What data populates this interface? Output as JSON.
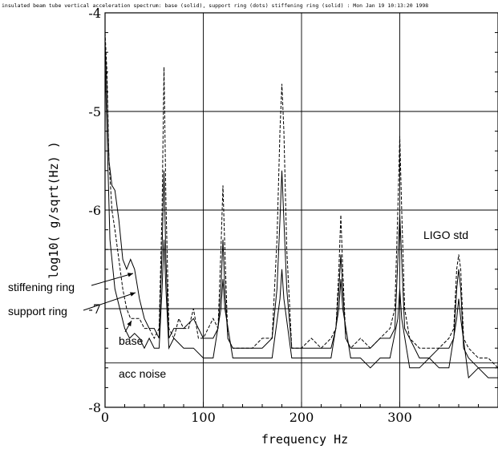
{
  "chart_data": {
    "type": "line",
    "title": "insulated beam tube vertical acceleration spectrum: base (solid), support ring (dots) stiffening ring (solid) : Mon Jan 19 10:13:20 1998",
    "xlabel": "frequency Hz",
    "ylabel": "log10( g/sqrt(Hz) )",
    "xlim": [
      0,
      400
    ],
    "ylim": [
      -8,
      -4
    ],
    "x_ticks": [
      0,
      100,
      200,
      300
    ],
    "x_tick_labels": [
      "0",
      "100",
      "200",
      "300"
    ],
    "y_ticks": [
      -4,
      -5,
      -6,
      -7,
      -8
    ],
    "y_tick_labels": [
      "-4",
      "-5",
      "-6",
      "-7",
      "-8"
    ],
    "hlines": [
      {
        "label": "LIGO std",
        "y": -6.4
      },
      {
        "label": "acc noise",
        "y": -7.55
      }
    ],
    "grid": true,
    "annotations": [
      "stiffening ring",
      "support ring",
      "base",
      "LIGO std",
      "acc noise"
    ],
    "series": [
      {
        "name": "support ring",
        "style": "dashed",
        "x": [
          0,
          2,
          4,
          7,
          10,
          14,
          18,
          22,
          26,
          30,
          35,
          40,
          45,
          50,
          55,
          58,
          60,
          62,
          65,
          70,
          75,
          80,
          85,
          90,
          95,
          100,
          105,
          110,
          115,
          118,
          120,
          122,
          125,
          130,
          140,
          150,
          160,
          165,
          170,
          175,
          178,
          180,
          182,
          185,
          190,
          200,
          210,
          220,
          230,
          235,
          238,
          240,
          242,
          245,
          250,
          260,
          270,
          280,
          290,
          295,
          298,
          300,
          302,
          305,
          310,
          320,
          330,
          340,
          350,
          355,
          358,
          360,
          362,
          365,
          370,
          380,
          390,
          400
        ],
        "y": [
          -4.2,
          -4.6,
          -5.5,
          -6.0,
          -6.2,
          -6.5,
          -6.8,
          -7.0,
          -7.1,
          -7.1,
          -7.1,
          -7.2,
          -7.2,
          -7.3,
          -7.2,
          -6.0,
          -4.55,
          -5.9,
          -7.2,
          -7.3,
          -7.1,
          -7.2,
          -7.2,
          -7.0,
          -7.3,
          -7.3,
          -7.2,
          -7.1,
          -7.2,
          -6.4,
          -5.75,
          -6.4,
          -7.3,
          -7.4,
          -7.4,
          -7.4,
          -7.3,
          -7.3,
          -7.3,
          -6.3,
          -5.2,
          -4.72,
          -5.2,
          -6.4,
          -7.4,
          -7.4,
          -7.3,
          -7.4,
          -7.3,
          -7.2,
          -6.6,
          -6.05,
          -6.6,
          -7.3,
          -7.4,
          -7.3,
          -7.4,
          -7.3,
          -7.2,
          -7.0,
          -6.0,
          -5.25,
          -6.0,
          -7.0,
          -7.3,
          -7.4,
          -7.4,
          -7.4,
          -7.3,
          -7.2,
          -6.6,
          -6.45,
          -6.6,
          -7.3,
          -7.4,
          -7.5,
          -7.5,
          -7.6
        ]
      },
      {
        "name": "stiffening ring",
        "style": "solid",
        "x": [
          0,
          2,
          4,
          7,
          10,
          14,
          18,
          22,
          26,
          30,
          35,
          40,
          45,
          50,
          55,
          58,
          60,
          62,
          65,
          70,
          80,
          90,
          100,
          110,
          115,
          118,
          120,
          122,
          125,
          130,
          140,
          150,
          160,
          170,
          175,
          178,
          180,
          182,
          185,
          190,
          200,
          210,
          220,
          230,
          235,
          238,
          240,
          242,
          245,
          250,
          260,
          270,
          280,
          290,
          295,
          298,
          300,
          302,
          305,
          310,
          320,
          330,
          340,
          350,
          355,
          358,
          360,
          362,
          365,
          370,
          380,
          390,
          400
        ],
        "y": [
          -4.3,
          -4.8,
          -5.5,
          -5.75,
          -5.8,
          -6.1,
          -6.5,
          -6.6,
          -6.5,
          -6.6,
          -6.9,
          -7.1,
          -7.2,
          -7.2,
          -7.3,
          -6.4,
          -5.6,
          -6.5,
          -7.3,
          -7.2,
          -7.2,
          -7.1,
          -7.3,
          -7.3,
          -7.2,
          -6.8,
          -6.3,
          -6.8,
          -7.3,
          -7.4,
          -7.4,
          -7.4,
          -7.4,
          -7.3,
          -6.8,
          -6.1,
          -5.6,
          -6.1,
          -6.8,
          -7.4,
          -7.4,
          -7.4,
          -7.4,
          -7.4,
          -7.2,
          -6.8,
          -6.45,
          -6.8,
          -7.3,
          -7.4,
          -7.4,
          -7.4,
          -7.3,
          -7.3,
          -7.2,
          -6.5,
          -6.05,
          -6.5,
          -7.2,
          -7.3,
          -7.5,
          -7.5,
          -7.4,
          -7.4,
          -7.3,
          -6.8,
          -6.6,
          -6.8,
          -7.4,
          -7.5,
          -7.6,
          -7.6,
          -7.6
        ]
      },
      {
        "name": "base",
        "style": "solid",
        "x": [
          0,
          5,
          10,
          15,
          20,
          25,
          30,
          35,
          40,
          45,
          50,
          55,
          58,
          60,
          62,
          65,
          70,
          80,
          90,
          100,
          110,
          118,
          120,
          122,
          130,
          140,
          150,
          160,
          170,
          178,
          180,
          182,
          190,
          200,
          210,
          220,
          230,
          238,
          240,
          242,
          250,
          260,
          270,
          280,
          290,
          298,
          300,
          302,
          310,
          320,
          330,
          340,
          350,
          358,
          360,
          362,
          370,
          380,
          390,
          400
        ],
        "y": [
          -4.5,
          -6.3,
          -6.8,
          -7.0,
          -7.2,
          -7.3,
          -7.25,
          -7.3,
          -7.4,
          -7.3,
          -7.4,
          -7.4,
          -6.8,
          -6.3,
          -6.8,
          -7.4,
          -7.3,
          -7.4,
          -7.4,
          -7.5,
          -7.5,
          -7.0,
          -6.7,
          -7.0,
          -7.5,
          -7.5,
          -7.5,
          -7.5,
          -7.5,
          -6.9,
          -6.6,
          -6.9,
          -7.5,
          -7.5,
          -7.5,
          -7.5,
          -7.5,
          -7.0,
          -6.7,
          -7.0,
          -7.5,
          -7.5,
          -7.6,
          -7.5,
          -7.5,
          -7.1,
          -6.8,
          -7.1,
          -7.6,
          -7.6,
          -7.5,
          -7.6,
          -7.6,
          -7.1,
          -6.9,
          -7.1,
          -7.7,
          -7.6,
          -7.7,
          -7.7
        ]
      }
    ]
  }
}
